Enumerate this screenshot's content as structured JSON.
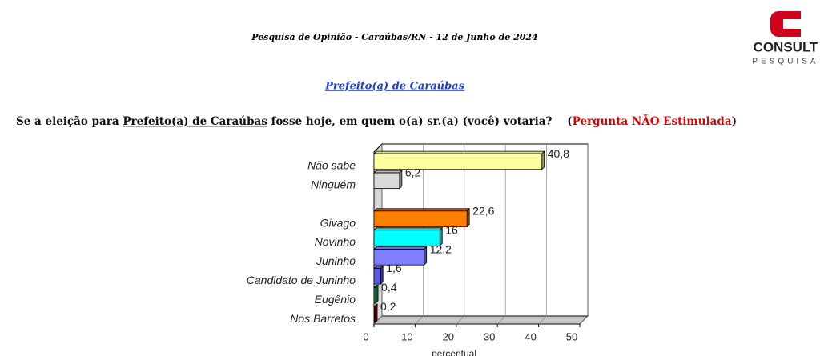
{
  "header": {
    "title": "Pesquisa de Opinião  -  Caraúbas/RN  -  12 de Junho de 2024"
  },
  "logo": {
    "name": "CONSULT",
    "tagline": "PESQUISA"
  },
  "subtitle": "Prefeito(a) de Caraúbas",
  "question": [
    "Se a eleição para ",
    "Prefeito(a) de Caraúbas",
    " fosse hoje, em quem o(a) sr.(a) (você) votaria?    (",
    "Pergunta NÃO Estimulada",
    ")"
  ],
  "chart_data": {
    "type": "bar3d",
    "orientation": "horizontal",
    "categories": [
      "Não sabe",
      "Ninguém",
      null,
      "Givago",
      "Novinho",
      "Juninho",
      "Candidato de Juninho",
      "Eugênio",
      "Nos Barretos"
    ],
    "values": [
      40.8,
      6.2,
      null,
      22.6,
      16,
      12.2,
      1.6,
      0.4,
      0.2
    ],
    "value_labels": [
      "40,8",
      "6,2",
      null,
      "22,6",
      "16",
      "12,2",
      "1,6",
      "0,4",
      "0,2"
    ],
    "colors": [
      "#ffffa0",
      "#d9d9d9",
      null,
      "#ff7f00",
      "#00ffff",
      "#8080ff",
      "#5a5ae6",
      "#00a050",
      "#c00000"
    ],
    "xlim": [
      0,
      50
    ],
    "xticks": [
      0,
      10,
      20,
      30,
      40,
      50
    ],
    "xlabel": "percentual",
    "grid": true
  }
}
